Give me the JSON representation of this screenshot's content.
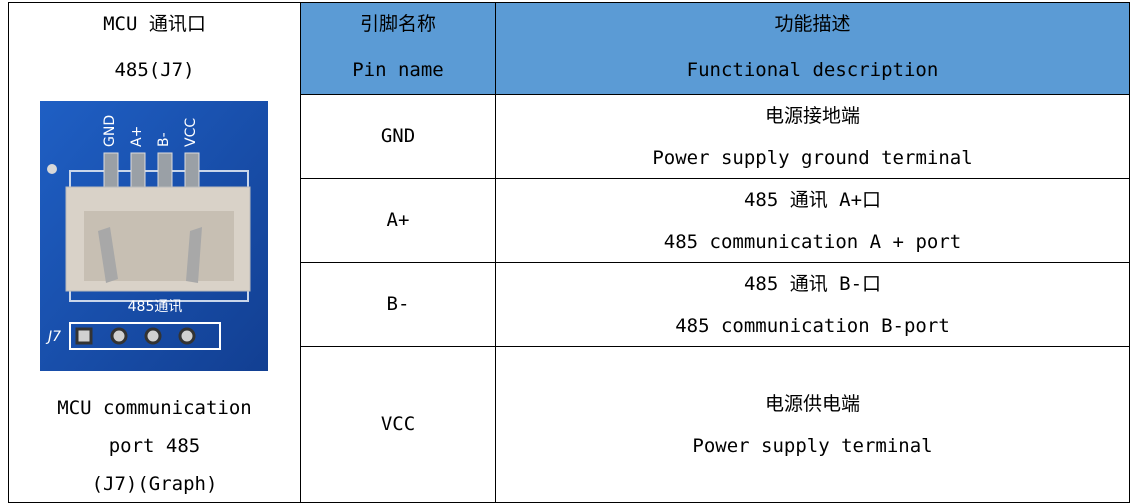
{
  "port_cell": {
    "title_lines": [
      "MCU 通讯口",
      "485(J7)"
    ],
    "image_labels": {
      "pins": [
        "GND",
        "A+",
        "B-",
        "VCC"
      ],
      "board_text": "485通讯",
      "connector": "J7"
    },
    "caption_lines": [
      "MCU communication",
      "port 485",
      "(J7)(Graph)"
    ]
  },
  "table": {
    "header": {
      "pin_cn": "引脚名称",
      "pin_en": "Pin name",
      "desc_cn": "功能描述",
      "desc_en": "Functional description"
    },
    "rows": [
      {
        "pin": "GND",
        "desc_cn": "电源接地端",
        "desc_en": "Power supply ground terminal"
      },
      {
        "pin": "A+",
        "desc_cn": "485 通讯 A+口",
        "desc_en": "485 communication A + port"
      },
      {
        "pin": "B-",
        "desc_cn": "485 通讯 B-口",
        "desc_en": "485 communication B-port"
      },
      {
        "pin": "VCC",
        "desc_cn": "电源供电端",
        "desc_en": "Power supply terminal"
      }
    ]
  }
}
